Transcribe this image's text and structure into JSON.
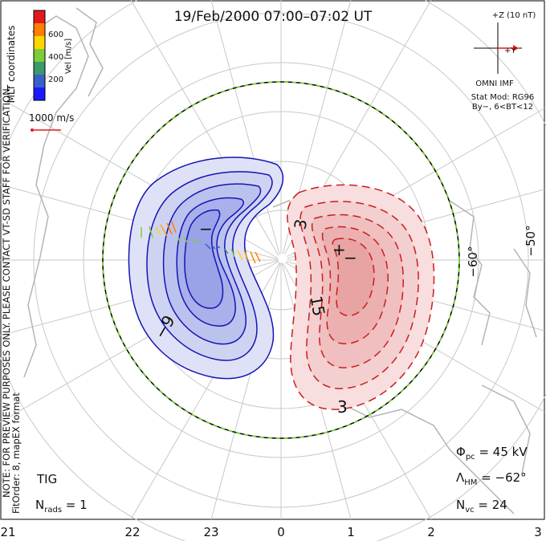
{
  "title": "19/Feb/2000 07:00–07:02 UT",
  "coords_label": "MLT coordinates",
  "colorbar": {
    "label": "Vel [m/s]",
    "ticks": [
      "600",
      "400",
      "200"
    ],
    "colors": [
      "#e31a1c",
      "#ff7f00",
      "#ffd700",
      "#7ccd3a",
      "#3a9a6a",
      "#3b5fc8",
      "#1a1aff"
    ]
  },
  "vector_scale": "1000 m/s",
  "note_line1": "NOTE: FOR PREVIEW PURPOSES ONLY. PLEASE CONTACT VT-SD STAFF FOR VERIFICATION.",
  "note_line2": "FitOrder: 8, mapEX format",
  "imf": {
    "z_label": "+Z (10 nT)",
    "y_label": "+Y",
    "source": "OMNI IMF",
    "stat_mod": "Stat Mod: RG96",
    "bin": "By−, 6<BT<12"
  },
  "lat_labels": [
    "−60°",
    "−50°"
  ],
  "mlt_labels": [
    "21",
    "22",
    "23",
    "0",
    "1",
    "2",
    "3"
  ],
  "contour_labels": {
    "neg_marker": "−",
    "neg_value": "−9",
    "pos_marker": "+",
    "pos_value_a": "−",
    "pos_value_b": "15",
    "pos_value_c": "3",
    "pos_value_d": "3"
  },
  "stats": {
    "phi_symbol": "Φ",
    "phi_sub": "pc",
    "phi_value": " = 45 kV",
    "lambda_symbol": "Λ",
    "lambda_sub": "HM",
    "lambda_value": " = −62°",
    "nvc_symbol": "N",
    "nvc_sub": "vc",
    "nvc_value": " = 24",
    "nrads_symbol": "N",
    "nrads_sub": "rads",
    "nrads_value": " = 1"
  },
  "station": "TIG",
  "colors": {
    "negative_line": "#1414b4",
    "positive_line": "#c81e1e",
    "negative_fill": "#c8cdf0",
    "positive_fill": "#f5c8c8",
    "hm_boundary_dash": "#7ccd3a",
    "coast": "#b4b4b4",
    "grid": "#c8c8c8"
  }
}
